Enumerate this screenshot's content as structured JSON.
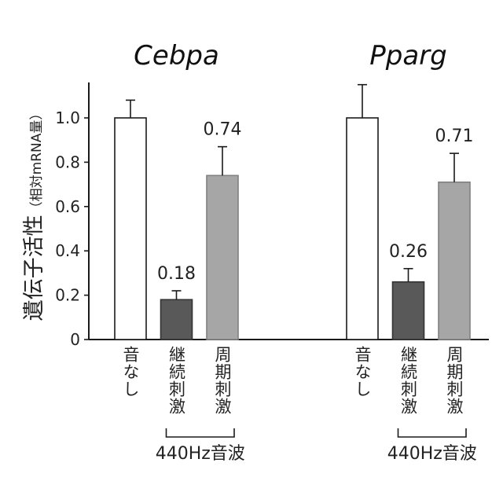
{
  "chart_data": {
    "type": "bar",
    "ylabel": "遺伝子活性",
    "ylabel_sub": "（相対mRNA量）",
    "ylim": [
      0,
      1.16
    ],
    "yticks": [
      0,
      0.2,
      0.4,
      0.6,
      0.8,
      1.0
    ],
    "ytick_labels": [
      "0",
      "0.2",
      "0.4",
      "0.6",
      "0.8",
      "1.0"
    ],
    "grid": false,
    "legend": "none",
    "categories": [
      "音なし",
      "継続刺激",
      "周期刺激"
    ],
    "bar_colors": [
      "#ffffff",
      "#595959",
      "#a6a6a6"
    ],
    "bar_edge_colors": [
      "#1a1a1a",
      "#333333",
      "#808080"
    ],
    "bracket_label": "440Hz音波",
    "groups": [
      {
        "title": "Cebpa",
        "values": [
          1.0,
          0.18,
          0.74
        ],
        "errors": [
          0.08,
          0.04,
          0.13
        ],
        "value_labels": [
          null,
          "0.18",
          "0.74"
        ]
      },
      {
        "title": "Pparg",
        "values": [
          1.0,
          0.26,
          0.71
        ],
        "errors": [
          0.15,
          0.06,
          0.13
        ],
        "value_labels": [
          null,
          "0.26",
          "0.71"
        ]
      }
    ]
  }
}
